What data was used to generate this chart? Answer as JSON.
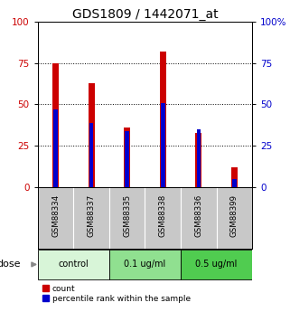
{
  "title": "GDS1809 / 1442071_at",
  "samples": [
    "GSM88334",
    "GSM88337",
    "GSM88335",
    "GSM88338",
    "GSM88336",
    "GSM88399"
  ],
  "red_values": [
    75,
    63,
    36,
    82,
    33,
    12
  ],
  "blue_values": [
    47,
    39,
    34,
    51,
    35,
    5
  ],
  "groups": [
    {
      "label": "control",
      "indices": [
        0,
        1
      ],
      "color": "#d8f5d8"
    },
    {
      "label": "0.1 ug/ml",
      "indices": [
        2,
        3
      ],
      "color": "#90e090"
    },
    {
      "label": "0.5 ug/ml",
      "indices": [
        4,
        5
      ],
      "color": "#50cc50"
    }
  ],
  "dose_label": "dose",
  "legend_red": "count",
  "legend_blue": "percentile rank within the sample",
  "ylim": [
    0,
    100
  ],
  "yticks": [
    0,
    25,
    50,
    75,
    100
  ],
  "red_bar_width": 0.18,
  "blue_bar_width": 0.12,
  "red_color": "#cc0000",
  "blue_color": "#0000cc",
  "title_fontsize": 10,
  "tick_label_color_left": "#cc0000",
  "tick_label_color_right": "#0000cc",
  "background_color": "#ffffff",
  "plot_bg": "#ffffff",
  "sample_bg": "#c8c8c8"
}
